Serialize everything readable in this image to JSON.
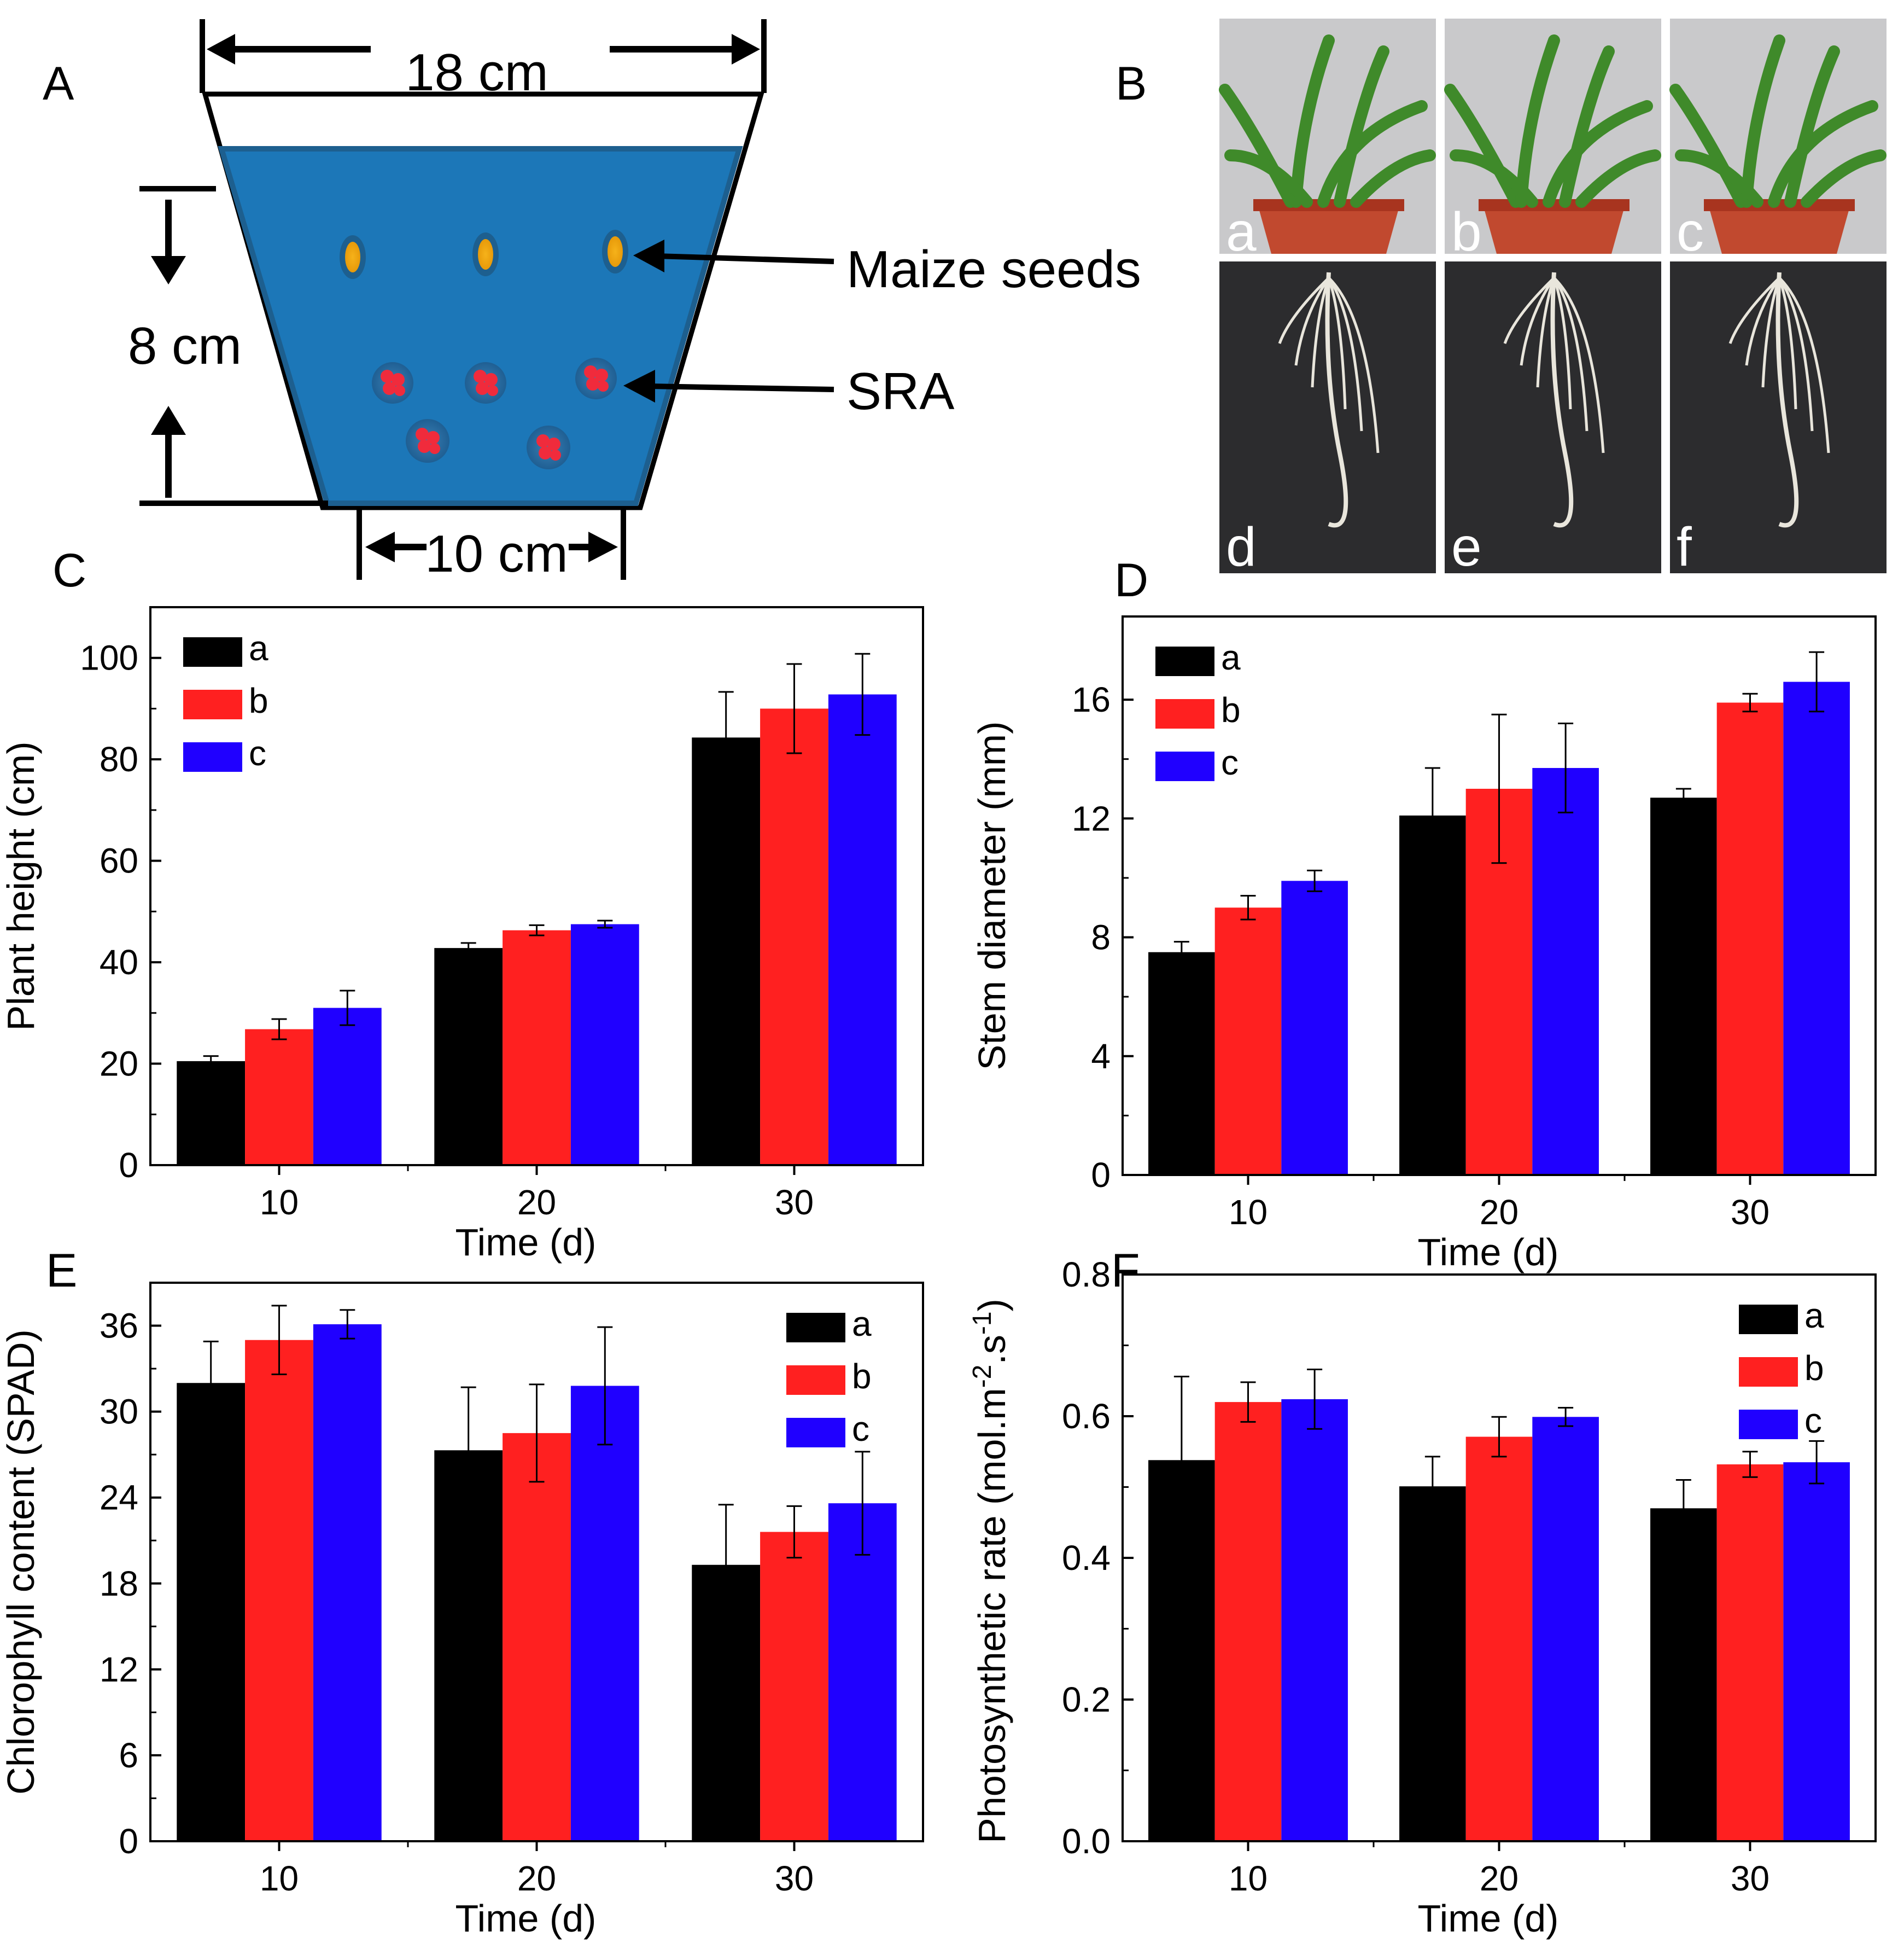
{
  "panel_labels": {
    "A": "A",
    "B": "B",
    "C": "C",
    "D": "D",
    "E": "E",
    "F": "F"
  },
  "diagram": {
    "top_width": "18 cm",
    "depth": "8 cm",
    "bottom_width": "10 cm",
    "label_seeds": "Maize seeds",
    "label_sra": "SRA"
  },
  "photos": {
    "plants": [
      "a",
      "b",
      "c"
    ],
    "roots": [
      "d",
      "e",
      "f"
    ]
  },
  "colors": {
    "a": "#000000",
    "b": "#ff2020",
    "c": "#2000ff"
  },
  "chart_data": [
    {
      "panel": "C",
      "type": "bar",
      "categories": [
        "10",
        "20",
        "30"
      ],
      "xlabel": "Time (d)",
      "ylabel": "Plant height (cm)",
      "ylim": [
        0,
        110
      ],
      "yticks": [
        0,
        20,
        40,
        60,
        80,
        100
      ],
      "ytick_labels": [
        "0",
        "20",
        "40",
        "60",
        "80",
        "100"
      ],
      "legend_position": "top-left",
      "series": [
        {
          "name": "a",
          "values": [
            20.5,
            42.8,
            84.3
          ],
          "errors": [
            1.0,
            1.0,
            9.0
          ]
        },
        {
          "name": "b",
          "values": [
            26.8,
            46.3,
            90.0
          ],
          "errors": [
            2.0,
            1.0,
            8.8
          ]
        },
        {
          "name": "c",
          "values": [
            31.0,
            47.5,
            92.8
          ],
          "errors": [
            3.4,
            0.7,
            8.0
          ]
        }
      ]
    },
    {
      "panel": "D",
      "type": "bar",
      "categories": [
        "10",
        "20",
        "30"
      ],
      "xlabel": "Time (d)",
      "ylabel": "Stem diameter (mm)",
      "ylim": [
        0,
        18.8
      ],
      "yticks": [
        0,
        4,
        8,
        12,
        16
      ],
      "ytick_labels": [
        "0",
        "4",
        "8",
        "12",
        "16"
      ],
      "legend_position": "top-left",
      "series": [
        {
          "name": "a",
          "values": [
            7.5,
            12.1,
            12.7
          ],
          "errors": [
            0.35,
            1.6,
            0.3
          ]
        },
        {
          "name": "b",
          "values": [
            9.0,
            13.0,
            15.9
          ],
          "errors": [
            0.4,
            2.5,
            0.3
          ]
        },
        {
          "name": "c",
          "values": [
            9.9,
            13.7,
            16.6
          ],
          "errors": [
            0.35,
            1.5,
            1.0
          ]
        }
      ]
    },
    {
      "panel": "E",
      "type": "bar",
      "categories": [
        "10",
        "20",
        "30"
      ],
      "xlabel": "Time (d)",
      "ylabel": "Chlorophyll content (SPAD)",
      "ylim": [
        0,
        39
      ],
      "yticks": [
        0,
        6,
        12,
        18,
        24,
        30,
        36
      ],
      "ytick_labels": [
        "0",
        "6",
        "12",
        "18",
        "24",
        "30",
        "36"
      ],
      "legend_position": "top-right",
      "series": [
        {
          "name": "a",
          "values": [
            32.0,
            27.3,
            19.3
          ],
          "errors": [
            2.9,
            4.4,
            4.2
          ]
        },
        {
          "name": "b",
          "values": [
            35.0,
            28.5,
            21.6
          ],
          "errors": [
            2.4,
            3.4,
            1.8
          ]
        },
        {
          "name": "c",
          "values": [
            36.1,
            31.8,
            23.6
          ],
          "errors": [
            1.0,
            4.1,
            3.6
          ]
        }
      ]
    },
    {
      "panel": "F",
      "type": "bar",
      "categories": [
        "10",
        "20",
        "30"
      ],
      "xlabel": "Time (d)",
      "ylabel": "Photosynthetic rate (mol.m",
      "ylabel_sup1": "-2",
      "ylabel_mid": ".s",
      "ylabel_sup2": "-1",
      "ylabel_end": ")",
      "ylim": [
        0,
        0.8
      ],
      "yticks": [
        0.0,
        0.2,
        0.4,
        0.6,
        0.8
      ],
      "ytick_labels": [
        "0.0",
        "0.2",
        "0.4",
        "0.6",
        "0.8"
      ],
      "legend_position": "top-right",
      "series": [
        {
          "name": "a",
          "values": [
            0.538,
            0.501,
            0.47
          ],
          "errors": [
            0.118,
            0.042,
            0.04
          ]
        },
        {
          "name": "b",
          "values": [
            0.62,
            0.571,
            0.532
          ],
          "errors": [
            0.028,
            0.028,
            0.018
          ]
        },
        {
          "name": "c",
          "values": [
            0.624,
            0.599,
            0.535
          ],
          "errors": [
            0.042,
            0.013,
            0.03
          ]
        }
      ]
    }
  ]
}
